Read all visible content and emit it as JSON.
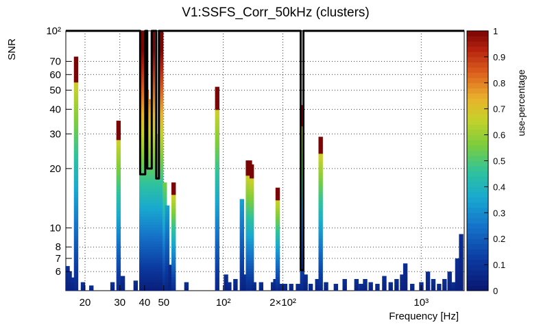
{
  "chart_data": {
    "type": "histogram2d",
    "title": "V1:SSFS_Corr_50kHz (clusters)",
    "xlabel": "Frequency [Hz]",
    "ylabel": "SNR",
    "zlabel": "use-percentage",
    "x_scale": "log",
    "y_scale": "log",
    "xlim": [
      16,
      1650
    ],
    "ylim": [
      4.8,
      100
    ],
    "zlim": [
      0,
      1
    ],
    "grid": true,
    "legend": "right",
    "x_ticks": [
      {
        "value": 20,
        "label": "20"
      },
      {
        "value": 30,
        "label": "30"
      },
      {
        "value": 40,
        "label": "40"
      },
      {
        "value": 50,
        "label": "50"
      },
      {
        "value": 100,
        "label": "10²"
      },
      {
        "value": 200,
        "label": "2×10²"
      },
      {
        "value": 1000,
        "label": "10³"
      }
    ],
    "y_ticks": [
      {
        "value": 6,
        "label": "6"
      },
      {
        "value": 7,
        "label": "7"
      },
      {
        "value": 8,
        "label": "8"
      },
      {
        "value": 10,
        "label": "10"
      },
      {
        "value": 20,
        "label": "20"
      },
      {
        "value": 30,
        "label": "30"
      },
      {
        "value": 40,
        "label": "40"
      },
      {
        "value": 50,
        "label": "50"
      },
      {
        "value": 60,
        "label": "60"
      },
      {
        "value": 70,
        "label": "70"
      },
      {
        "value": 100,
        "label": "10²"
      }
    ],
    "z_ticks": [
      {
        "value": 0,
        "label": "0"
      },
      {
        "value": 0.1,
        "label": "0.1"
      },
      {
        "value": 0.2,
        "label": "0.2"
      },
      {
        "value": 0.3,
        "label": "0.3"
      },
      {
        "value": 0.4,
        "label": "0.4"
      },
      {
        "value": 0.5,
        "label": "0.5"
      },
      {
        "value": 0.6,
        "label": "0.6"
      },
      {
        "value": 0.7,
        "label": "0.7"
      },
      {
        "value": 0.8,
        "label": "0.8"
      },
      {
        "value": 0.9,
        "label": "0.9"
      },
      {
        "value": 1,
        "label": "1"
      }
    ],
    "columns": [
      {
        "f": 16.3,
        "snr": 6.4
      },
      {
        "f": 16.7,
        "snr": 6.0
      },
      {
        "f": 17.3,
        "snr": 5.6
      },
      {
        "f": 18.0,
        "snr": 74,
        "profile": "tall"
      },
      {
        "f": 19.5,
        "snr": 5.3
      },
      {
        "f": 21.5,
        "snr": 5.1
      },
      {
        "f": 27.5,
        "snr": 5.3
      },
      {
        "f": 29.5,
        "snr": 35,
        "profile": "tall"
      },
      {
        "f": 31.0,
        "snr": 5.7
      },
      {
        "f": 36.0,
        "snr": 5.4
      },
      {
        "f": 38.5,
        "snr": 100,
        "profile": "full"
      },
      {
        "f": 40.0,
        "snr": 100,
        "profile": "full"
      },
      {
        "f": 41.0,
        "snr": 50,
        "profile": "full"
      },
      {
        "f": 42.0,
        "snr": 45,
        "profile": "full"
      },
      {
        "f": 43.0,
        "snr": 25,
        "profile": "full"
      },
      {
        "f": 44.0,
        "snr": 100,
        "profile": "full"
      },
      {
        "f": 45.5,
        "snr": 28,
        "profile": "full"
      },
      {
        "f": 47.0,
        "snr": 30,
        "profile": "full"
      },
      {
        "f": 48.5,
        "snr": 100,
        "profile": "full"
      },
      {
        "f": 50.5,
        "snr": 17,
        "profile": "mid"
      },
      {
        "f": 52.0,
        "snr": 13,
        "profile": "low"
      },
      {
        "f": 54.0,
        "snr": 6.5
      },
      {
        "f": 56.0,
        "snr": 17,
        "profile": "tall"
      },
      {
        "f": 65.0,
        "snr": 5.3
      },
      {
        "f": 93.0,
        "snr": 52,
        "profile": "tall"
      },
      {
        "f": 103,
        "snr": 5.8
      },
      {
        "f": 107,
        "snr": 5.3
      },
      {
        "f": 115,
        "snr": 5.5
      },
      {
        "f": 124,
        "snr": 14,
        "profile": "low"
      },
      {
        "f": 127,
        "snr": 5.8
      },
      {
        "f": 131,
        "snr": 5.8
      },
      {
        "f": 133,
        "snr": 22,
        "profile": "tall"
      },
      {
        "f": 136,
        "snr": 22,
        "profile": "tall"
      },
      {
        "f": 139,
        "snr": 21,
        "profile": "tall"
      },
      {
        "f": 143,
        "snr": 5.3
      },
      {
        "f": 155,
        "snr": 5.3
      },
      {
        "f": 178,
        "snr": 5.3
      },
      {
        "f": 183,
        "snr": 5.5
      },
      {
        "f": 188,
        "snr": 16,
        "profile": "tall"
      },
      {
        "f": 195,
        "snr": 5.2
      },
      {
        "f": 200,
        "snr": 5.2
      },
      {
        "f": 205,
        "snr": 5.2
      },
      {
        "f": 220,
        "snr": 5.2
      },
      {
        "f": 238,
        "snr": 5.2
      },
      {
        "f": 250,
        "snr": 42,
        "profile": "tall"
      },
      {
        "f": 260,
        "snr": 5.8
      },
      {
        "f": 276,
        "snr": 5.2
      },
      {
        "f": 298,
        "snr": 5.5
      },
      {
        "f": 310,
        "snr": 29,
        "profile": "tall"
      },
      {
        "f": 330,
        "snr": 5.3
      },
      {
        "f": 370,
        "snr": 5.2
      },
      {
        "f": 410,
        "snr": 5.5
      },
      {
        "f": 470,
        "snr": 5.5
      },
      {
        "f": 495,
        "snr": 5.2
      },
      {
        "f": 520,
        "snr": 5.5
      },
      {
        "f": 555,
        "snr": 5.3
      },
      {
        "f": 600,
        "snr": 5.2
      },
      {
        "f": 650,
        "snr": 5.7
      },
      {
        "f": 700,
        "snr": 5.3
      },
      {
        "f": 750,
        "snr": 5.5
      },
      {
        "f": 800,
        "snr": 5.8
      },
      {
        "f": 830,
        "snr": 6.6
      },
      {
        "f": 900,
        "snr": 5.2
      },
      {
        "f": 1000,
        "snr": 5.3
      },
      {
        "f": 1080,
        "snr": 6.0
      },
      {
        "f": 1150,
        "snr": 5.5
      },
      {
        "f": 1230,
        "snr": 5.2
      },
      {
        "f": 1310,
        "snr": 5.5
      },
      {
        "f": 1390,
        "snr": 6.0
      },
      {
        "f": 1450,
        "snr": 5.3
      },
      {
        "f": 1520,
        "snr": 7.0
      },
      {
        "f": 1590,
        "snr": 9.3
      }
    ],
    "outline": [
      [
        16,
        100
      ],
      [
        38,
        100
      ],
      [
        38,
        18.7
      ],
      [
        40.3,
        18.7
      ],
      [
        40.3,
        100
      ],
      [
        41.3,
        100
      ],
      [
        41.3,
        20
      ],
      [
        43.5,
        20
      ],
      [
        43.5,
        100
      ],
      [
        45.8,
        100
      ],
      [
        45.8,
        17.8
      ],
      [
        47.3,
        17.8
      ],
      [
        47.3,
        100
      ],
      [
        246,
        100
      ],
      [
        246,
        6.1
      ],
      [
        254,
        6.1
      ],
      [
        254,
        100
      ],
      [
        1650,
        100
      ]
    ]
  }
}
